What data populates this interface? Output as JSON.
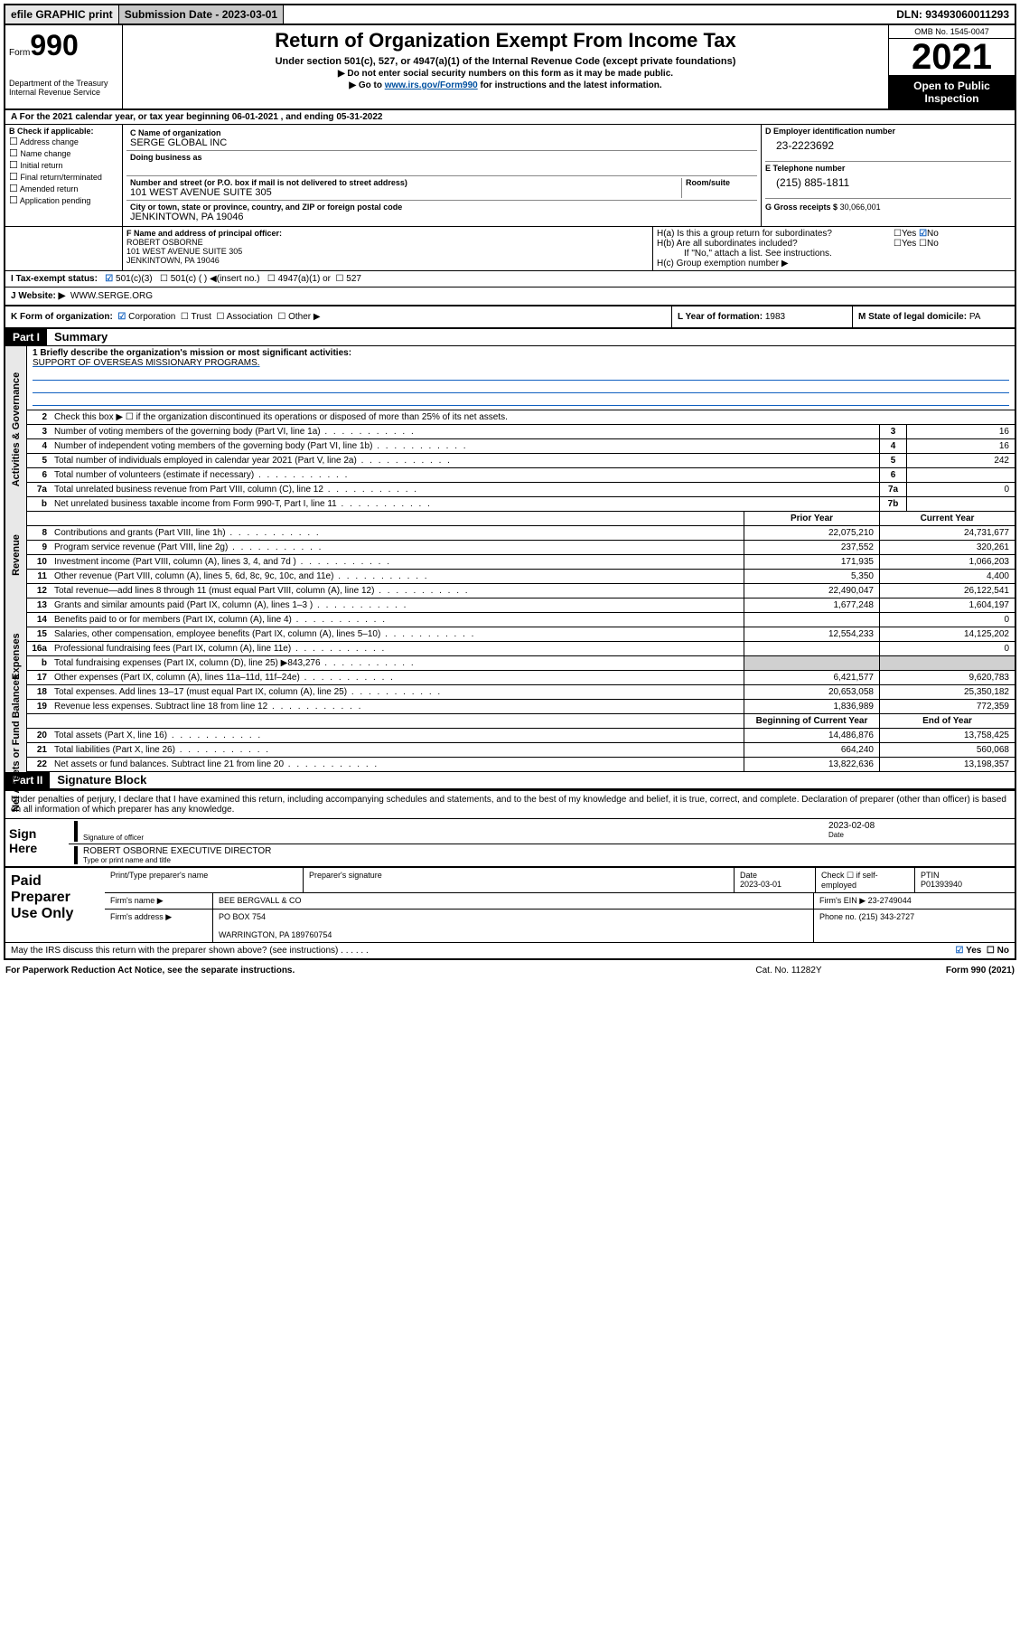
{
  "topbar": {
    "efile": "efile GRAPHIC print",
    "sub_label": "Submission Date - 2023-03-01",
    "dln": "DLN: 93493060011293"
  },
  "header": {
    "form_prefix": "Form",
    "form_number": "990",
    "title": "Return of Organization Exempt From Income Tax",
    "sub1": "Under section 501(c), 527, or 4947(a)(1) of the Internal Revenue Code (except private foundations)",
    "sub2": "▶ Do not enter social security numbers on this form as it may be made public.",
    "sub3_pre": "▶ Go to ",
    "sub3_link": "www.irs.gov/Form990",
    "sub3_post": " for instructions and the latest information.",
    "dept": "Department of the Treasury\nInternal Revenue Service",
    "omb": "OMB No. 1545-0047",
    "year": "2021",
    "openpub": "Open to Public Inspection"
  },
  "line_a": "A For the 2021 calendar year, or tax year beginning 06-01-2021   , and ending 05-31-2022",
  "section_b": {
    "label": "B Check if applicable:",
    "opts": [
      "Address change",
      "Name change",
      "Initial return",
      "Final return/terminated",
      "Amended return",
      "Application pending"
    ]
  },
  "section_c": {
    "name_lbl": "C Name of organization",
    "name": "SERGE GLOBAL INC",
    "dba_lbl": "Doing business as",
    "dba": "",
    "addr_lbl": "Number and street (or P.O. box if mail is not delivered to street address)",
    "room_lbl": "Room/suite",
    "addr": "101 WEST AVENUE SUITE 305",
    "city_lbl": "City or town, state or province, country, and ZIP or foreign postal code",
    "city": "JENKINTOWN, PA  19046"
  },
  "section_d": {
    "lbl": "D Employer identification number",
    "val": "23-2223692"
  },
  "section_e": {
    "lbl": "E Telephone number",
    "val": "(215) 885-1811"
  },
  "section_g": {
    "lbl": "G Gross receipts $",
    "val": "30,066,001"
  },
  "section_f": {
    "lbl": "F Name and address of principal officer:",
    "name": "ROBERT OSBORNE",
    "addr1": "101 WEST AVENUE SUITE 305",
    "addr2": "JENKINTOWN, PA  19046"
  },
  "section_h": {
    "ha": "H(a)  Is this a group return for subordinates?",
    "ha_ans_yes": "Yes",
    "ha_ans_no": "No",
    "hb": "H(b)  Are all subordinates included?",
    "hb_note": "If \"No,\" attach a list. See instructions.",
    "hc": "H(c)  Group exemption number ▶"
  },
  "line_i": {
    "lbl": "I    Tax-exempt status:",
    "opts": [
      "501(c)(3)",
      "501(c) (  ) ◀(insert no.)",
      "4947(a)(1) or",
      "527"
    ]
  },
  "line_j": {
    "lbl": "J   Website: ▶",
    "val": "WWW.SERGE.ORG"
  },
  "line_k": {
    "lbl": "K Form of organization:",
    "opts": [
      "Corporation",
      "Trust",
      "Association",
      "Other ▶"
    ]
  },
  "line_l": {
    "lbl": "L Year of formation:",
    "val": "1983"
  },
  "line_m": {
    "lbl": "M State of legal domicile:",
    "val": "PA"
  },
  "part1": {
    "tag": "Part I",
    "title": "Summary"
  },
  "mission": {
    "q1": "1  Briefly describe the organization's mission or most significant activities:",
    "text": "SUPPORT OF OVERSEAS MISSIONARY PROGRAMS."
  },
  "gov_lines": [
    {
      "n": "2",
      "t": "Check this box ▶ ☐  if the organization discontinued its operations or disposed of more than 25% of its net assets."
    },
    {
      "n": "3",
      "t": "Number of voting members of the governing body (Part VI, line 1a)",
      "box": "3",
      "v": "16"
    },
    {
      "n": "4",
      "t": "Number of independent voting members of the governing body (Part VI, line 1b)",
      "box": "4",
      "v": "16"
    },
    {
      "n": "5",
      "t": "Total number of individuals employed in calendar year 2021 (Part V, line 2a)",
      "box": "5",
      "v": "242"
    },
    {
      "n": "6",
      "t": "Total number of volunteers (estimate if necessary)",
      "box": "6",
      "v": ""
    },
    {
      "n": "7a",
      "t": "Total unrelated business revenue from Part VIII, column (C), line 12",
      "box": "7a",
      "v": "0"
    },
    {
      "n": "b",
      "t": "Net unrelated business taxable income from Form 990-T, Part I, line 11",
      "box": "7b",
      "v": ""
    }
  ],
  "rev_head": {
    "c1": "Prior Year",
    "c2": "Current Year"
  },
  "rev_lines": [
    {
      "n": "8",
      "t": "Contributions and grants (Part VIII, line 1h)",
      "p": "22,075,210",
      "c": "24,731,677"
    },
    {
      "n": "9",
      "t": "Program service revenue (Part VIII, line 2g)",
      "p": "237,552",
      "c": "320,261"
    },
    {
      "n": "10",
      "t": "Investment income (Part VIII, column (A), lines 3, 4, and 7d )",
      "p": "171,935",
      "c": "1,066,203"
    },
    {
      "n": "11",
      "t": "Other revenue (Part VIII, column (A), lines 5, 6d, 8c, 9c, 10c, and 11e)",
      "p": "5,350",
      "c": "4,400"
    },
    {
      "n": "12",
      "t": "Total revenue—add lines 8 through 11 (must equal Part VIII, column (A), line 12)",
      "p": "22,490,047",
      "c": "26,122,541"
    }
  ],
  "exp_lines": [
    {
      "n": "13",
      "t": "Grants and similar amounts paid (Part IX, column (A), lines 1–3 )",
      "p": "1,677,248",
      "c": "1,604,197"
    },
    {
      "n": "14",
      "t": "Benefits paid to or for members (Part IX, column (A), line 4)",
      "p": "",
      "c": "0"
    },
    {
      "n": "15",
      "t": "Salaries, other compensation, employee benefits (Part IX, column (A), lines 5–10)",
      "p": "12,554,233",
      "c": "14,125,202"
    },
    {
      "n": "16a",
      "t": "Professional fundraising fees (Part IX, column (A), line 11e)",
      "p": "",
      "c": "0"
    },
    {
      "n": "b",
      "t": "Total fundraising expenses (Part IX, column (D), line 25) ▶843,276",
      "p": "grey",
      "c": "grey"
    },
    {
      "n": "17",
      "t": "Other expenses (Part IX, column (A), lines 11a–11d, 11f–24e)",
      "p": "6,421,577",
      "c": "9,620,783"
    },
    {
      "n": "18",
      "t": "Total expenses. Add lines 13–17 (must equal Part IX, column (A), line 25)",
      "p": "20,653,058",
      "c": "25,350,182"
    },
    {
      "n": "19",
      "t": "Revenue less expenses. Subtract line 18 from line 12",
      "p": "1,836,989",
      "c": "772,359"
    }
  ],
  "net_head": {
    "c1": "Beginning of Current Year",
    "c2": "End of Year"
  },
  "net_lines": [
    {
      "n": "20",
      "t": "Total assets (Part X, line 16)",
      "p": "14,486,876",
      "c": "13,758,425"
    },
    {
      "n": "21",
      "t": "Total liabilities (Part X, line 26)",
      "p": "664,240",
      "c": "560,068"
    },
    {
      "n": "22",
      "t": "Net assets or fund balances. Subtract line 21 from line 20",
      "p": "13,822,636",
      "c": "13,198,357"
    }
  ],
  "part2": {
    "tag": "Part II",
    "title": "Signature Block"
  },
  "sig": {
    "decl": "Under penalties of perjury, I declare that I have examined this return, including accompanying schedules and statements, and to the best of my knowledge and belief, it is true, correct, and complete. Declaration of preparer (other than officer) is based on all information of which preparer has any knowledge.",
    "sign_here": "Sign Here",
    "sig_officer": "Signature of officer",
    "date": "2023-02-08",
    "date_lbl": "Date",
    "name": "ROBERT OSBORNE  EXECUTIVE DIRECTOR",
    "name_lbl": "Type or print name and title"
  },
  "prep": {
    "title": "Paid Preparer Use Only",
    "h_name": "Print/Type preparer's name",
    "h_sig": "Preparer's signature",
    "h_date": "Date",
    "date": "2023-03-01",
    "h_check": "Check ☐ if self-employed",
    "h_ptin": "PTIN",
    "ptin": "P01393940",
    "firm_name_lbl": "Firm's name    ▶",
    "firm_name": "BEE BERGVALL & CO",
    "firm_ein_lbl": "Firm's EIN ▶",
    "firm_ein": "23-2749044",
    "firm_addr_lbl": "Firm's address ▶",
    "firm_addr1": "PO BOX 754",
    "firm_addr2": "WARRINGTON, PA  189760754",
    "phone_lbl": "Phone no.",
    "phone": "(215) 343-2727"
  },
  "footer": {
    "q": "May the IRS discuss this return with the preparer shown above? (see instructions)",
    "yes": "Yes",
    "no": "No",
    "pra": "For Paperwork Reduction Act Notice, see the separate instructions.",
    "cat": "Cat. No. 11282Y",
    "form": "Form 990 (2021)"
  },
  "vtabs": {
    "gov": "Activities & Governance",
    "rev": "Revenue",
    "exp": "Expenses",
    "net": "Net Assets or Fund Balances"
  }
}
